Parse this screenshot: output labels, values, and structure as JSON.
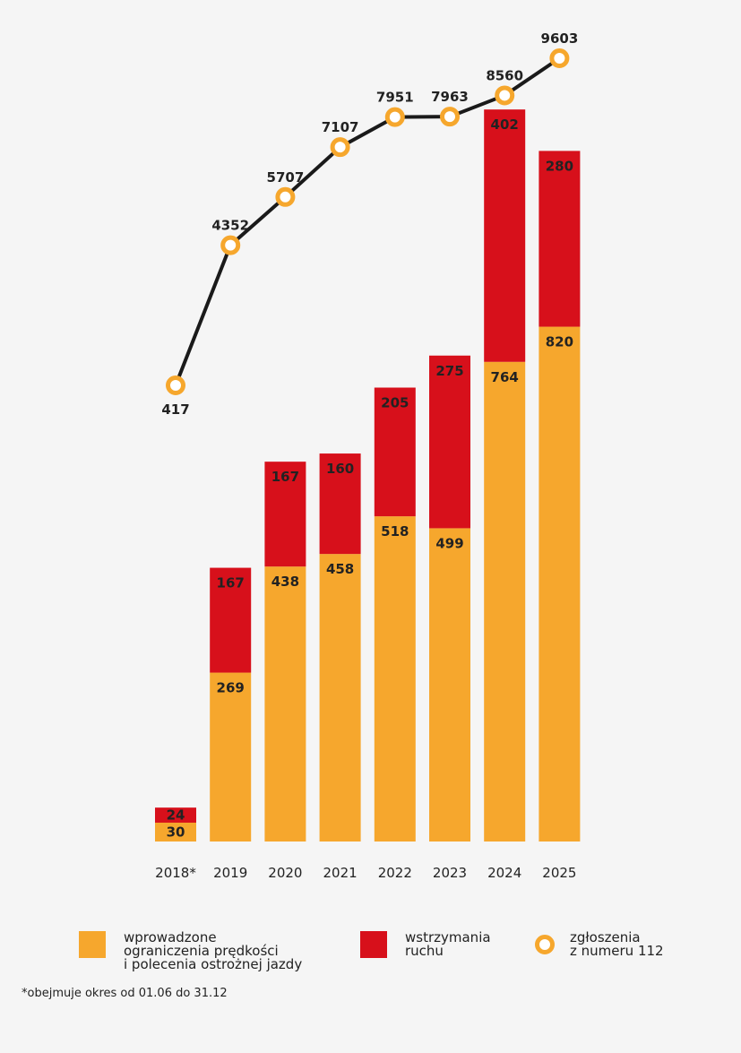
{
  "chart_data": {
    "type": "bar",
    "stacked": true,
    "categories": [
      "2018*",
      "2019",
      "2020",
      "2021",
      "2022",
      "2023",
      "2024",
      "2025"
    ],
    "series": [
      {
        "name": "wprowadzone ograniczenia prędkości i polecenia ostrożnej jazdy",
        "color": "#f6a72d",
        "values": [
          30,
          269,
          438,
          458,
          518,
          499,
          764,
          820
        ]
      },
      {
        "name": "wstrzymania ruchu",
        "color": "#d7101b",
        "values": [
          24,
          167,
          167,
          160,
          205,
          275,
          402,
          280
        ]
      }
    ],
    "line_series": {
      "name": "zgłoszenia z numeru 112",
      "color": "#1a1a1a",
      "marker_color": "#f6a72d",
      "values": [
        417,
        4352,
        5707,
        7107,
        7951,
        7963,
        8560,
        9603
      ]
    },
    "legend": {
      "placement": "bottom",
      "items": [
        {
          "lines": [
            "wprowadzone",
            "ograniczenia prędkości",
            "i polecenia ostrożnej jazdy"
          ],
          "color": "#f6a72d",
          "marker": "square"
        },
        {
          "lines": [
            "wstrzymania",
            "ruchu"
          ],
          "color": "#d7101b",
          "marker": "square"
        },
        {
          "lines": [
            "zgłoszenia",
            "z numeru 112"
          ],
          "color": "#f6a72d",
          "marker": "ring"
        }
      ]
    },
    "footnote": "*obejmuje okres od 01.06 do 31.12",
    "grid": false
  }
}
